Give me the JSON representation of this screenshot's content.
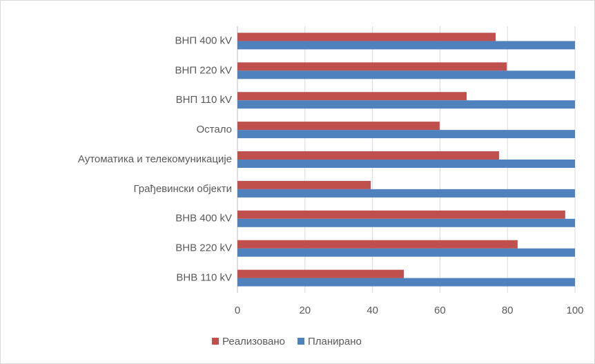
{
  "chart_data": {
    "type": "hbar",
    "categories": [
      "ВНП  400 kV",
      "ВНП  220 kV",
      "ВНП 110 kV",
      "Остало",
      "Аутоматика и телекомуникације",
      "Грађевински објекти",
      "ВНВ 400 kV",
      "ВНВ 220 kV",
      "ВНВ 110 kV"
    ],
    "series": [
      {
        "name": "Реализовано",
        "color": "#c0504d",
        "values": [
          76.5,
          79.8,
          67.9,
          59.9,
          77.5,
          39.5,
          97.1,
          83,
          49.3
        ]
      },
      {
        "name": "Планирано",
        "color": "#4f81bd",
        "values": [
          100,
          100,
          100,
          100,
          100,
          100,
          100,
          100,
          100
        ]
      }
    ],
    "xlim": [
      0,
      100
    ],
    "xticks": [
      0,
      20,
      40,
      60,
      80,
      100
    ],
    "grid": true,
    "legend": "bottom"
  }
}
